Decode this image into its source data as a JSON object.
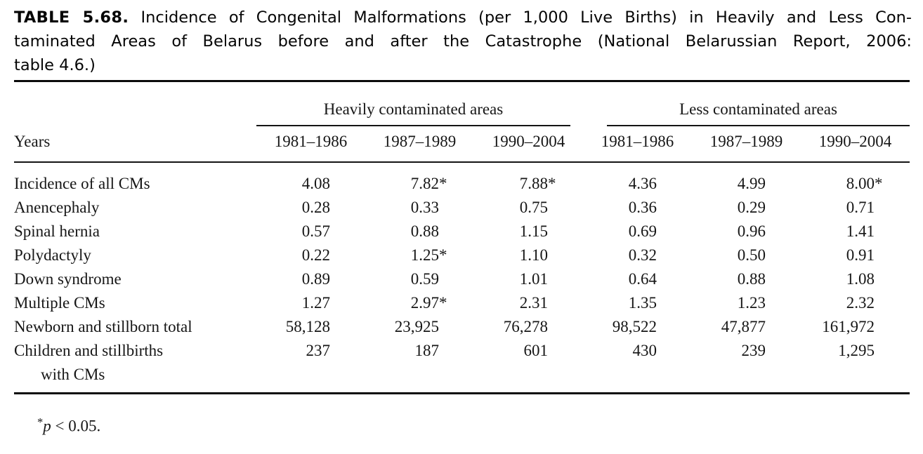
{
  "page": {
    "background_color": "#ffffff",
    "text_color": "#161616"
  },
  "title": {
    "label": "TABLE 5.68.",
    "line1_rest": "Incidence of Congenital Malformations (per 1,000 Live Births) in Heavily and Less Con-",
    "line2": "taminated Areas of Belarus before and after the Catastrophe (National Belarussian Report, 2006: ",
    "line3": "table 4.6.)"
  },
  "table": {
    "group_headers": {
      "heavy": "Heavily contaminated areas",
      "less": "Less contaminated areas"
    },
    "years_label": "Years",
    "year_columns": [
      "1981–1986",
      "1987–1989",
      "1990–2004",
      "1981–1986",
      "1987–1989",
      "1990–2004"
    ],
    "rows": [
      {
        "label": "Incidence of all CMs",
        "values": [
          "4.08",
          "7.82*",
          "7.88*",
          "4.36",
          "4.99",
          "8.00*"
        ]
      },
      {
        "label": "Anencephaly",
        "values": [
          "0.28",
          "0.33",
          "0.75",
          "0.36",
          "0.29",
          "0.71"
        ]
      },
      {
        "label": "Spinal hernia",
        "values": [
          "0.57",
          "0.88",
          "1.15",
          "0.69",
          "0.96",
          "1.41"
        ]
      },
      {
        "label": "Polydactyly",
        "values": [
          "0.22",
          "1.25*",
          "1.10",
          "0.32",
          "0.50",
          "0.91"
        ]
      },
      {
        "label": "Down syndrome",
        "values": [
          "0.89",
          "0.59",
          "1.01",
          "0.64",
          "0.88",
          "1.08"
        ]
      },
      {
        "label": "Multiple CMs",
        "values": [
          "1.27",
          "2.97*",
          "2.31",
          "1.35",
          "1.23",
          "2.32"
        ]
      },
      {
        "label": "Newborn and stillborn total",
        "values": [
          "58,128",
          "23,925",
          "76,278",
          "98,522",
          "47,877",
          "161,972"
        ]
      },
      {
        "label": "Children and stillbirths",
        "label_line2": "with CMs",
        "values": [
          "237",
          "187",
          "601",
          "430",
          "239",
          "1,295"
        ]
      }
    ],
    "footnote": {
      "star": "*",
      "symbol": "p",
      "rest": " < 0.05."
    }
  }
}
